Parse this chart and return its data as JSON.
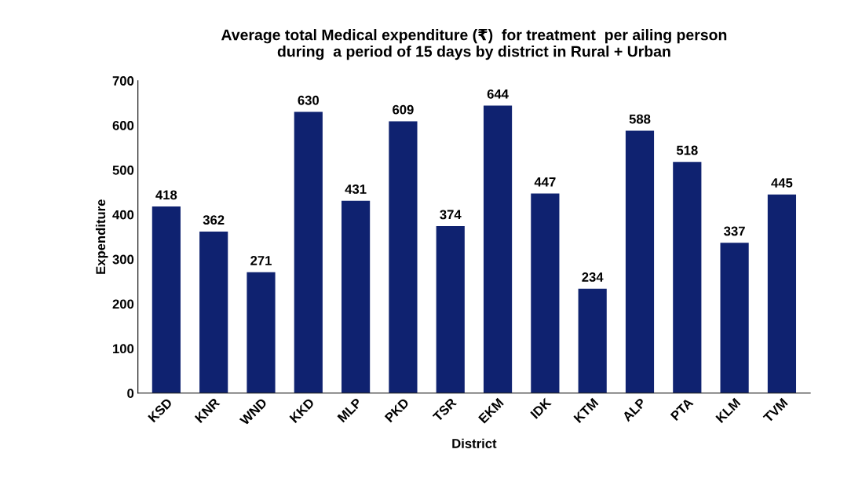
{
  "chart_data": {
    "type": "bar",
    "title": "Average total Medical expenditure (₹)  for treatment  per ailing person\nduring  a period of 15 days by district in Rural + Urban",
    "xlabel": "District",
    "ylabel": "Expenditure",
    "categories": [
      "KSD",
      "KNR",
      "WND",
      "KKD",
      "MLP",
      "PKD",
      "TSR",
      "EKM",
      "IDK",
      "KTM",
      "ALP",
      "PTA",
      "KLM",
      "TVM"
    ],
    "values": [
      418,
      362,
      271,
      630,
      431,
      609,
      374,
      644,
      447,
      234,
      588,
      518,
      337,
      445
    ],
    "color": "#0f2270",
    "ylim": [
      0,
      700
    ],
    "yticks": [
      0,
      100,
      200,
      300,
      400,
      500,
      600,
      700
    ],
    "data_labels": true,
    "grid": false,
    "legend": false
  }
}
